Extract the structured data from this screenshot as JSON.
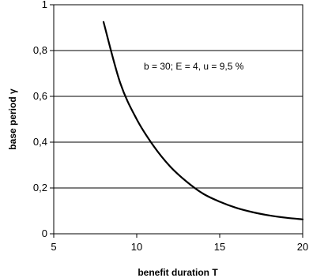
{
  "chart_data": {
    "type": "line",
    "xlabel": "benefit duration T",
    "ylabel": "base period γ",
    "xlim": [
      5,
      20
    ],
    "ylim": [
      0,
      1
    ],
    "x_ticks": [
      "5",
      "10",
      "15",
      "20"
    ],
    "y_ticks": [
      "0",
      "0,2",
      "0,4",
      "0,6",
      "0,8",
      "1"
    ],
    "grid": "horizontal",
    "annotation": "b = 30; E = 4, u = 9,5 %",
    "series": [
      {
        "x": [
          8,
          9,
          10,
          11,
          12,
          13,
          14,
          15,
          16,
          17,
          18,
          19,
          20
        ],
        "y": [
          0.925,
          0.66,
          0.5,
          0.385,
          0.295,
          0.228,
          0.175,
          0.14,
          0.113,
          0.094,
          0.08,
          0.07,
          0.063
        ]
      }
    ]
  }
}
